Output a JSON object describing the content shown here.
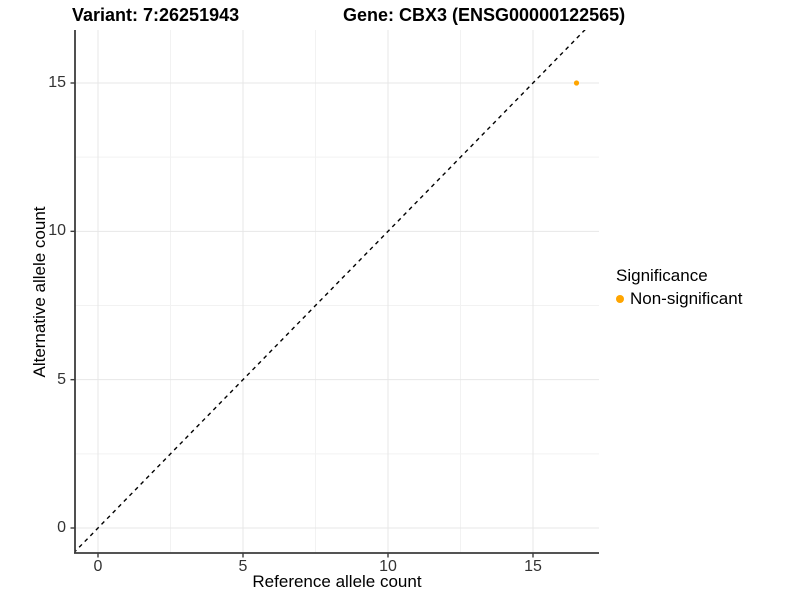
{
  "titles": {
    "variant": "Variant: 7:26251943",
    "gene": "Gene: CBX3 (ENSG00000122565)"
  },
  "axes": {
    "x_label": "Reference allele count",
    "y_label": "Alternative allele count"
  },
  "legend": {
    "title": "Significance",
    "items": [
      {
        "label": "Non-significant",
        "color": "#FFA500"
      }
    ]
  },
  "chart_data": {
    "type": "scatter",
    "title": "Variant: 7:26251943   Gene: CBX3 (ENSG00000122565)",
    "xlabel": "Reference allele count",
    "ylabel": "Alternative allele count",
    "x_ticks": [
      0,
      5,
      10,
      15
    ],
    "y_ticks": [
      0,
      5,
      10,
      15
    ],
    "xlim": [
      -0.8,
      17.3
    ],
    "ylim": [
      -0.85,
      16.8
    ],
    "grid": true,
    "legend_position": "right",
    "reference_line": {
      "type": "abline",
      "slope": 1,
      "intercept": 0,
      "style": "dashed",
      "color": "#000000"
    },
    "series": [
      {
        "name": "Non-significant",
        "color": "#FFA500",
        "points": [
          {
            "x": 16.5,
            "y": 15
          }
        ]
      }
    ],
    "colors": {
      "major_grid": "#E7E7E7",
      "minor_grid": "#F2F2F2",
      "axis_line": "#3C3C3C",
      "tick_text": "#333333"
    }
  }
}
